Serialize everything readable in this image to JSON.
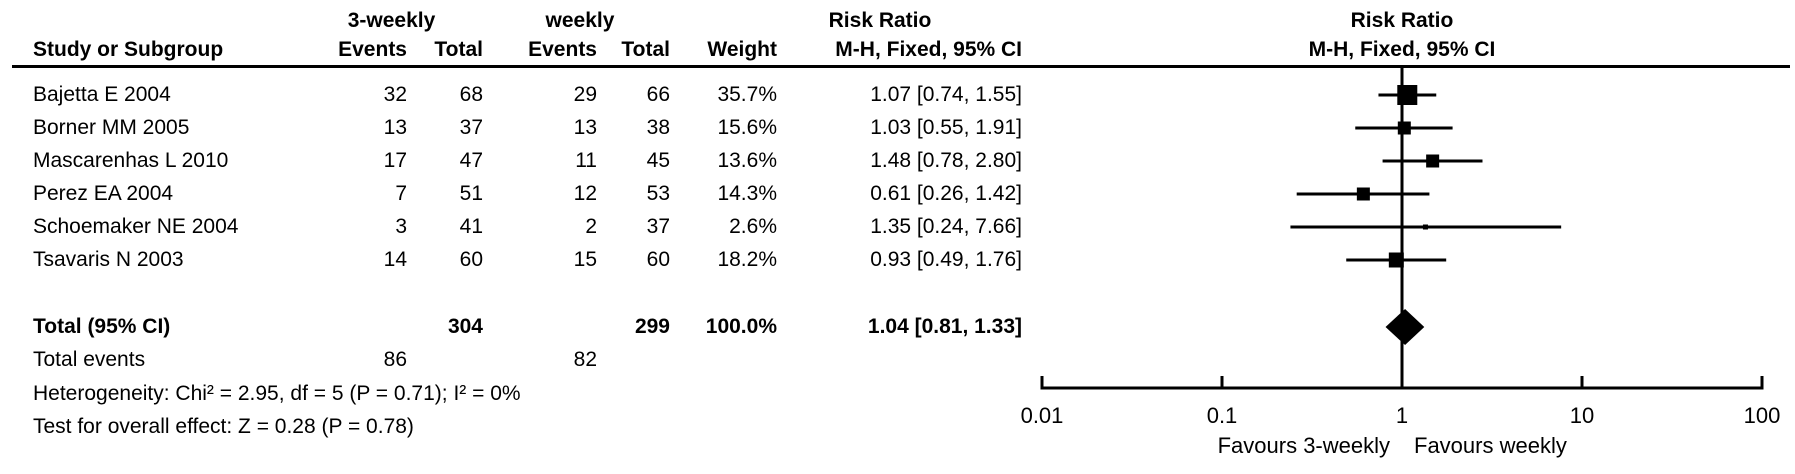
{
  "table": {
    "header": {
      "group1": "3-weekly",
      "group2": "weekly",
      "risk_ratio_left": "Risk Ratio",
      "risk_ratio_right": "Risk Ratio",
      "method_left": "M-H, Fixed, 95% CI",
      "method_right": "M-H, Fixed, 95% CI",
      "study": "Study or Subgroup",
      "events1": "Events",
      "total1": "Total",
      "events2": "Events",
      "total2": "Total",
      "weight": "Weight"
    },
    "rows": [
      {
        "study": "Bajetta E 2004",
        "e1": "32",
        "t1": "68",
        "e2": "29",
        "t2": "66",
        "weight": "35.7%",
        "ci": "1.07 [0.74, 1.55]"
      },
      {
        "study": "Borner MM 2005",
        "e1": "13",
        "t1": "37",
        "e2": "13",
        "t2": "38",
        "weight": "15.6%",
        "ci": "1.03 [0.55, 1.91]"
      },
      {
        "study": "Mascarenhas L 2010",
        "e1": "17",
        "t1": "47",
        "e2": "11",
        "t2": "45",
        "weight": "13.6%",
        "ci": "1.48 [0.78, 2.80]"
      },
      {
        "study": "Perez EA 2004",
        "e1": "7",
        "t1": "51",
        "e2": "12",
        "t2": "53",
        "weight": "14.3%",
        "ci": "0.61 [0.26, 1.42]"
      },
      {
        "study": "Schoemaker NE 2004",
        "e1": "3",
        "t1": "41",
        "e2": "2",
        "t2": "37",
        "weight": "2.6%",
        "ci": "1.35 [0.24, 7.66]"
      },
      {
        "study": "Tsavaris N 2003",
        "e1": "14",
        "t1": "60",
        "e2": "15",
        "t2": "60",
        "weight": "18.2%",
        "ci": "0.93 [0.49, 1.76]"
      }
    ],
    "total_row": {
      "label": "Total (95% CI)",
      "t1": "304",
      "t2": "299",
      "weight": "100.0%",
      "ci": "1.04 [0.81, 1.33]"
    },
    "total_events": {
      "label": "Total events",
      "e1": "86",
      "e2": "82"
    },
    "heterogeneity": "Heterogeneity: Chi² = 2.95, df = 5 (P = 0.71); I² = 0%",
    "overall_effect": "Test for overall effect: Z = 0.28 (P = 0.78)"
  },
  "chart_data": {
    "type": "forest",
    "effect_measure": "Risk Ratio",
    "method": "M-H, Fixed, 95% CI",
    "x_scale": "log10",
    "x_ticks": [
      0.01,
      0.1,
      1,
      10,
      100
    ],
    "tick_labels": [
      "0.01",
      "0.1",
      "1",
      "10",
      "100"
    ],
    "null_value": 1,
    "favours_left": "Favours 3-weekly",
    "favours_right": "Favours weekly",
    "marker_color": "#000000",
    "studies": [
      {
        "name": "Bajetta E 2004",
        "rr": 1.07,
        "ci_low": 0.74,
        "ci_high": 1.55,
        "weight_pct": 35.7
      },
      {
        "name": "Borner MM 2005",
        "rr": 1.03,
        "ci_low": 0.55,
        "ci_high": 1.91,
        "weight_pct": 15.6
      },
      {
        "name": "Mascarenhas L 2010",
        "rr": 1.48,
        "ci_low": 0.78,
        "ci_high": 2.8,
        "weight_pct": 13.6
      },
      {
        "name": "Perez EA 2004",
        "rr": 0.61,
        "ci_low": 0.26,
        "ci_high": 1.42,
        "weight_pct": 14.3
      },
      {
        "name": "Schoemaker NE 2004",
        "rr": 1.35,
        "ci_low": 0.24,
        "ci_high": 7.66,
        "weight_pct": 2.6
      },
      {
        "name": "Tsavaris N 2003",
        "rr": 0.93,
        "ci_low": 0.49,
        "ci_high": 1.76,
        "weight_pct": 18.2
      }
    ],
    "total": {
      "name": "Total (95% CI)",
      "rr": 1.04,
      "ci_low": 0.81,
      "ci_high": 1.33,
      "weight_pct": 100.0
    }
  }
}
